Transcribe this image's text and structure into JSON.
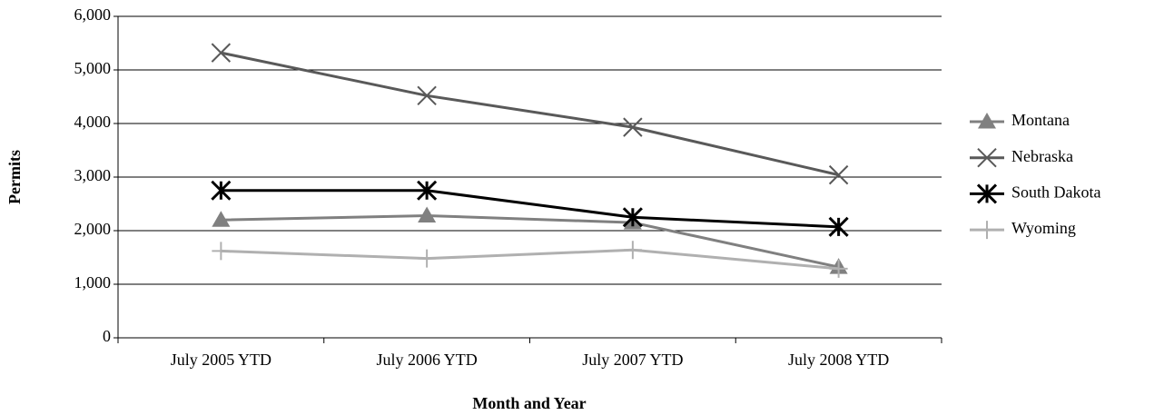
{
  "chart_data": {
    "type": "line",
    "categories": [
      "July 2005 YTD",
      "July 2006 YTD",
      "July 2007 YTD",
      "July 2008 YTD"
    ],
    "series": [
      {
        "name": "Montana",
        "color": "#808080",
        "marker": "triangle",
        "values": [
          2200,
          2280,
          2150,
          1320
        ]
      },
      {
        "name": "Nebraska",
        "color": "#595959",
        "marker": "x",
        "values": [
          5320,
          4520,
          3930,
          3040
        ]
      },
      {
        "name": "South Dakota",
        "color": "#000000",
        "marker": "star",
        "values": [
          2750,
          2750,
          2250,
          2070
        ]
      },
      {
        "name": "Wyoming",
        "color": "#b0b0b0",
        "marker": "plus",
        "values": [
          1620,
          1480,
          1640,
          1290
        ]
      }
    ],
    "ylim": [
      0,
      6000
    ],
    "yticks": [
      0,
      {
        "value": 1000,
        "label": "1,000"
      },
      {
        "value": 2000,
        "label": "2,000"
      },
      {
        "value": 3000,
        "label": "3,000"
      },
      {
        "value": 4000,
        "label": "4,000"
      },
      {
        "value": 5000,
        "label": "5,000"
      },
      {
        "value": 6000,
        "label": "6,000"
      }
    ],
    "y_label": "Permits",
    "x_label": "Month and Year",
    "grid": true,
    "legend": "right"
  }
}
